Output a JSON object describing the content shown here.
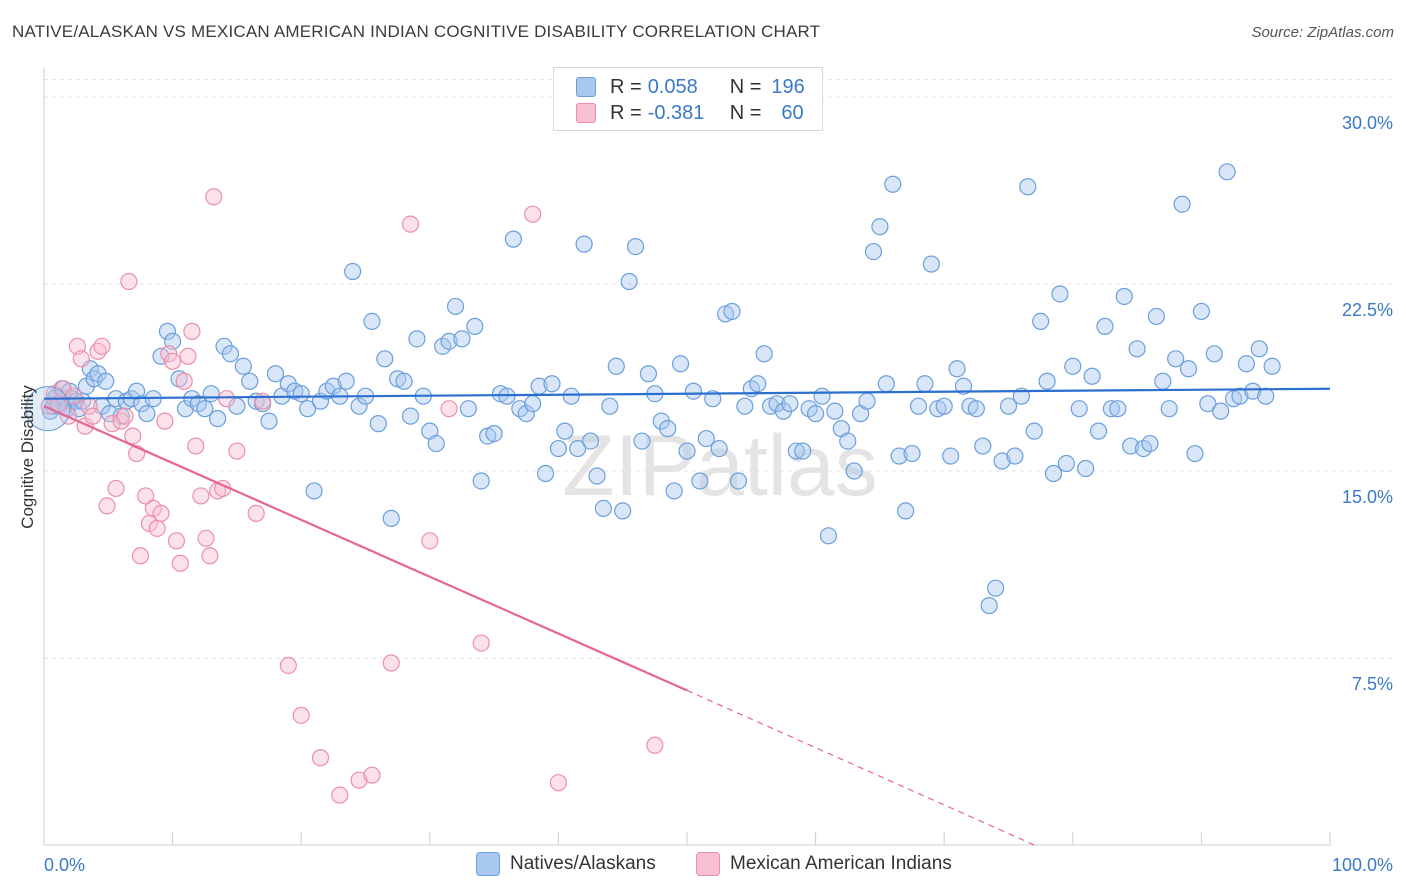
{
  "title": "NATIVE/ALASKAN VS MEXICAN AMERICAN INDIAN COGNITIVE DISABILITY CORRELATION CHART",
  "source": "Source: ZipAtlas.com",
  "watermark": "ZIPatlas",
  "legend": {
    "r_label": "R =",
    "n_label": "N =",
    "rows": [
      {
        "r": "0.058",
        "n": "196",
        "color": "#a9c8ef",
        "border": "#6b9fdc"
      },
      {
        "r": "-0.381",
        "n": "60",
        "color": "#f7bfd0",
        "border": "#ec8eaa"
      }
    ]
  },
  "chart_data": {
    "type": "scatter",
    "title": "NATIVE/ALASKAN VS MEXICAN AMERICAN INDIAN COGNITIVE DISABILITY CORRELATION CHART",
    "xlabel": "",
    "ylabel": "Cognitive Disability",
    "xlim": [
      0,
      100
    ],
    "ylim": [
      0,
      30.0
    ],
    "x_tick_labels": [
      "0.0%",
      "100.0%"
    ],
    "y_ticks": [
      7.5,
      15.0,
      22.5,
      30.0
    ],
    "y_tick_labels": [
      "7.5%",
      "15.0%",
      "22.5%",
      "30.0%"
    ],
    "grid": true,
    "colors": {
      "natives": "#6b9fdc",
      "natives_fill": "#a9c8ef",
      "mexican": "#ec8eaa",
      "mexican_fill": "#f7bfd0",
      "natives_trend": "#2b6fcf",
      "mexican_trend": "#e6658f",
      "axis_label": "#3a78c9"
    },
    "series": [
      {
        "name": "Natives/Alaskans",
        "trend": {
          "x0": 0,
          "y0": 17.9,
          "x1": 100,
          "y1": 18.3
        },
        "points": [
          [
            0.5,
            17.4
          ],
          [
            0.7,
            17.6
          ],
          [
            0.8,
            17.9
          ],
          [
            1.0,
            18.0
          ],
          [
            1.2,
            17.6
          ],
          [
            1.4,
            18.3
          ],
          [
            1.6,
            17.9
          ],
          [
            1.8,
            17.5
          ],
          [
            2.0,
            18.2
          ],
          [
            2.2,
            17.9
          ],
          [
            2.5,
            17.8
          ],
          [
            2.7,
            17.5
          ],
          [
            3.0,
            17.8
          ],
          [
            3.3,
            18.4
          ],
          [
            3.6,
            19.1
          ],
          [
            3.9,
            18.7
          ],
          [
            4.2,
            18.9
          ],
          [
            4.5,
            17.6
          ],
          [
            4.8,
            18.6
          ],
          [
            5.1,
            17.3
          ],
          [
            5.6,
            17.9
          ],
          [
            6.0,
            17.2
          ],
          [
            6.4,
            17.8
          ],
          [
            6.8,
            17.9
          ],
          [
            7.2,
            18.2
          ],
          [
            7.6,
            17.7
          ],
          [
            8.0,
            17.3
          ],
          [
            8.5,
            17.9
          ],
          [
            9.1,
            19.6
          ],
          [
            9.6,
            20.6
          ],
          [
            10.0,
            20.2
          ],
          [
            10.5,
            18.7
          ],
          [
            11.0,
            17.5
          ],
          [
            11.5,
            17.9
          ],
          [
            12.0,
            17.7
          ],
          [
            12.5,
            17.5
          ],
          [
            13.0,
            18.1
          ],
          [
            13.5,
            17.1
          ],
          [
            14.0,
            20.0
          ],
          [
            14.5,
            19.7
          ],
          [
            15.0,
            17.6
          ],
          [
            15.5,
            19.2
          ],
          [
            16.0,
            18.6
          ],
          [
            16.5,
            17.8
          ],
          [
            17.0,
            17.7
          ],
          [
            17.5,
            17.0
          ],
          [
            18.0,
            18.9
          ],
          [
            18.5,
            18.0
          ],
          [
            19.0,
            18.5
          ],
          [
            19.5,
            18.2
          ],
          [
            20.0,
            18.1
          ],
          [
            20.5,
            17.5
          ],
          [
            21.0,
            14.2
          ],
          [
            21.5,
            17.8
          ],
          [
            22.0,
            18.2
          ],
          [
            22.5,
            18.4
          ],
          [
            23.0,
            18.0
          ],
          [
            23.5,
            18.6
          ],
          [
            24.0,
            23.0
          ],
          [
            24.5,
            17.6
          ],
          [
            25.0,
            18.0
          ],
          [
            25.5,
            21.0
          ],
          [
            26.0,
            16.9
          ],
          [
            26.5,
            19.5
          ],
          [
            27.0,
            13.1
          ],
          [
            27.5,
            18.7
          ],
          [
            28.0,
            18.6
          ],
          [
            28.5,
            17.2
          ],
          [
            29.0,
            20.3
          ],
          [
            29.5,
            18.0
          ],
          [
            30.0,
            16.6
          ],
          [
            30.5,
            16.1
          ],
          [
            31.0,
            20.0
          ],
          [
            31.5,
            20.2
          ],
          [
            32.0,
            21.6
          ],
          [
            32.5,
            20.3
          ],
          [
            33.0,
            17.5
          ],
          [
            33.5,
            20.8
          ],
          [
            34.0,
            14.6
          ],
          [
            34.5,
            16.4
          ],
          [
            35.0,
            16.5
          ],
          [
            35.5,
            18.1
          ],
          [
            36.0,
            18.0
          ],
          [
            36.5,
            24.3
          ],
          [
            37.0,
            17.5
          ],
          [
            37.5,
            17.3
          ],
          [
            38.0,
            17.7
          ],
          [
            38.5,
            18.4
          ],
          [
            39.0,
            14.9
          ],
          [
            39.5,
            18.5
          ],
          [
            40.0,
            15.9
          ],
          [
            40.5,
            16.6
          ],
          [
            41.0,
            18.0
          ],
          [
            41.5,
            15.9
          ],
          [
            42.0,
            24.1
          ],
          [
            42.5,
            16.2
          ],
          [
            43.0,
            14.8
          ],
          [
            43.5,
            13.5
          ],
          [
            44.0,
            17.6
          ],
          [
            44.5,
            19.2
          ],
          [
            45.0,
            13.4
          ],
          [
            45.5,
            22.6
          ],
          [
            46.0,
            24.0
          ],
          [
            46.5,
            16.2
          ],
          [
            47.0,
            18.9
          ],
          [
            47.5,
            18.1
          ],
          [
            48.0,
            17.0
          ],
          [
            48.5,
            16.7
          ],
          [
            49.0,
            14.2
          ],
          [
            49.5,
            19.3
          ],
          [
            50.0,
            15.8
          ],
          [
            50.5,
            18.2
          ],
          [
            51.0,
            14.6
          ],
          [
            51.5,
            16.3
          ],
          [
            52.0,
            17.9
          ],
          [
            52.5,
            15.9
          ],
          [
            53.0,
            21.3
          ],
          [
            53.5,
            21.4
          ],
          [
            54.0,
            14.6
          ],
          [
            54.5,
            17.6
          ],
          [
            55.0,
            18.3
          ],
          [
            55.5,
            18.5
          ],
          [
            56.0,
            19.7
          ],
          [
            56.5,
            17.6
          ],
          [
            57.0,
            17.7
          ],
          [
            57.5,
            17.4
          ],
          [
            58.0,
            17.7
          ],
          [
            58.5,
            15.8
          ],
          [
            59.0,
            15.8
          ],
          [
            59.5,
            17.5
          ],
          [
            60.0,
            17.3
          ],
          [
            60.5,
            18.0
          ],
          [
            61.0,
            12.4
          ],
          [
            61.5,
            17.4
          ],
          [
            62.0,
            16.7
          ],
          [
            62.5,
            16.2
          ],
          [
            63.0,
            15.0
          ],
          [
            63.5,
            17.3
          ],
          [
            64.0,
            17.8
          ],
          [
            64.5,
            23.8
          ],
          [
            65.0,
            24.8
          ],
          [
            65.5,
            18.5
          ],
          [
            66.0,
            26.5
          ],
          [
            66.5,
            15.6
          ],
          [
            67.0,
            13.4
          ],
          [
            67.5,
            15.7
          ],
          [
            68.0,
            17.6
          ],
          [
            68.5,
            18.5
          ],
          [
            69.0,
            23.3
          ],
          [
            69.5,
            17.5
          ],
          [
            70.0,
            17.6
          ],
          [
            70.5,
            15.6
          ],
          [
            71.0,
            19.1
          ],
          [
            71.5,
            18.4
          ],
          [
            72.0,
            17.6
          ],
          [
            72.5,
            17.5
          ],
          [
            73.0,
            16.0
          ],
          [
            73.5,
            9.6
          ],
          [
            74.0,
            10.3
          ],
          [
            74.5,
            15.4
          ],
          [
            75.0,
            17.6
          ],
          [
            75.5,
            15.6
          ],
          [
            76.0,
            18.0
          ],
          [
            76.5,
            26.4
          ],
          [
            77.0,
            16.6
          ],
          [
            77.5,
            21.0
          ],
          [
            78.0,
            18.6
          ],
          [
            78.5,
            14.9
          ],
          [
            79.0,
            22.1
          ],
          [
            79.5,
            15.3
          ],
          [
            80.0,
            19.2
          ],
          [
            80.5,
            17.5
          ],
          [
            81.0,
            15.1
          ],
          [
            81.5,
            18.8
          ],
          [
            82.0,
            16.6
          ],
          [
            82.5,
            20.8
          ],
          [
            83.0,
            17.5
          ],
          [
            83.5,
            17.5
          ],
          [
            84.0,
            22.0
          ],
          [
            84.5,
            16.0
          ],
          [
            85.0,
            19.9
          ],
          [
            85.5,
            15.9
          ],
          [
            86.0,
            16.1
          ],
          [
            86.5,
            21.2
          ],
          [
            87.0,
            18.6
          ],
          [
            87.5,
            17.5
          ],
          [
            88.0,
            19.5
          ],
          [
            88.5,
            25.7
          ],
          [
            89.0,
            19.1
          ],
          [
            89.5,
            15.7
          ],
          [
            90.0,
            21.4
          ],
          [
            90.5,
            17.7
          ],
          [
            91.0,
            19.7
          ],
          [
            91.5,
            17.4
          ],
          [
            92.0,
            27.0
          ],
          [
            92.5,
            17.9
          ],
          [
            93.0,
            18.0
          ],
          [
            93.5,
            19.3
          ],
          [
            94.0,
            18.2
          ],
          [
            94.5,
            19.9
          ],
          [
            95.0,
            18.0
          ],
          [
            95.5,
            19.2
          ]
        ]
      },
      {
        "name": "Mexican American Indians",
        "trend": {
          "x0": 0,
          "y0": 17.6,
          "x1": 50,
          "y1": 6.2
        },
        "trend_dashed": {
          "x0": 50,
          "y0": 6.2,
          "x1": 77,
          "y1": 0.0
        },
        "points": [
          [
            0.4,
            17.6
          ],
          [
            0.8,
            18.1
          ],
          [
            1.1,
            17.7
          ],
          [
            1.5,
            18.3
          ],
          [
            1.9,
            17.2
          ],
          [
            2.3,
            18.0
          ],
          [
            2.6,
            20.0
          ],
          [
            2.9,
            19.5
          ],
          [
            3.2,
            16.8
          ],
          [
            3.5,
            17.6
          ],
          [
            3.8,
            17.2
          ],
          [
            4.2,
            19.8
          ],
          [
            4.5,
            20.0
          ],
          [
            4.9,
            13.6
          ],
          [
            5.3,
            16.9
          ],
          [
            5.6,
            14.3
          ],
          [
            6.0,
            17.0
          ],
          [
            6.3,
            17.2
          ],
          [
            6.6,
            22.6
          ],
          [
            6.9,
            16.4
          ],
          [
            7.2,
            15.7
          ],
          [
            7.5,
            11.6
          ],
          [
            7.9,
            14.0
          ],
          [
            8.2,
            12.9
          ],
          [
            8.5,
            13.5
          ],
          [
            8.8,
            12.7
          ],
          [
            9.1,
            13.3
          ],
          [
            9.4,
            17.0
          ],
          [
            9.7,
            19.7
          ],
          [
            10.0,
            19.4
          ],
          [
            10.3,
            12.2
          ],
          [
            10.6,
            11.3
          ],
          [
            10.9,
            18.6
          ],
          [
            11.2,
            19.6
          ],
          [
            11.5,
            20.6
          ],
          [
            11.8,
            16.0
          ],
          [
            12.2,
            14.0
          ],
          [
            12.6,
            12.3
          ],
          [
            12.9,
            11.6
          ],
          [
            13.2,
            26.0
          ],
          [
            13.5,
            14.2
          ],
          [
            13.9,
            14.3
          ],
          [
            14.2,
            17.9
          ],
          [
            15.0,
            15.8
          ],
          [
            16.5,
            13.3
          ],
          [
            17.0,
            17.8
          ],
          [
            19.0,
            7.2
          ],
          [
            20.0,
            5.2
          ],
          [
            21.5,
            3.5
          ],
          [
            23.0,
            2.0
          ],
          [
            24.5,
            2.6
          ],
          [
            25.5,
            2.8
          ],
          [
            27.0,
            7.3
          ],
          [
            28.5,
            24.9
          ],
          [
            30.0,
            12.2
          ],
          [
            31.5,
            17.5
          ],
          [
            34.0,
            8.1
          ],
          [
            38.0,
            25.3
          ],
          [
            40.0,
            2.5
          ],
          [
            47.5,
            4.0
          ]
        ]
      }
    ]
  },
  "legend_bottom": [
    {
      "label": "Natives/Alaskans",
      "color": "#a9c8ef",
      "border": "#6b9fdc"
    },
    {
      "label": "Mexican American Indians",
      "color": "#f7bfd0",
      "border": "#ec8eaa"
    }
  ]
}
